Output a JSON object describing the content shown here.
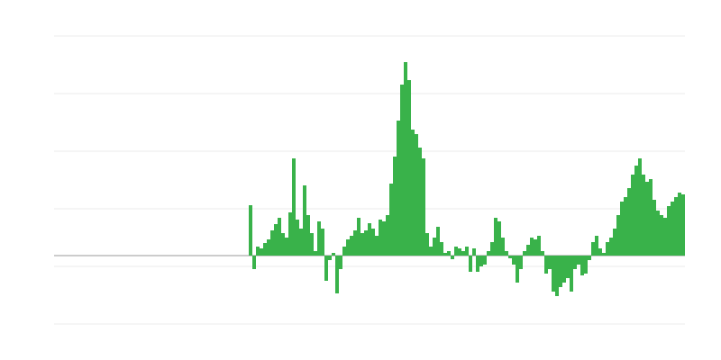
{
  "chart_data": {
    "type": "bar",
    "color": "#39b24a",
    "grid": true,
    "xlim": [
      0,
      175
    ],
    "ylim": [
      -76,
      244
    ],
    "yticks": [
      -76,
      -12,
      52,
      116,
      180,
      244
    ],
    "x": [
      54,
      55,
      56,
      57,
      58,
      59,
      60,
      61,
      62,
      63,
      64,
      65,
      66,
      67,
      68,
      69,
      70,
      71,
      72,
      73,
      74,
      75,
      76,
      77,
      78,
      79,
      80,
      81,
      82,
      83,
      84,
      85,
      86,
      87,
      88,
      89,
      90,
      91,
      92,
      93,
      94,
      95,
      96,
      97,
      98,
      99,
      100,
      101,
      102,
      103,
      104,
      105,
      106,
      107,
      108,
      109,
      110,
      111,
      112,
      113,
      114,
      115,
      116,
      117,
      118,
      119,
      120,
      121,
      122,
      123,
      124,
      125,
      126,
      127,
      128,
      129,
      130,
      131,
      132,
      133,
      134,
      135,
      136,
      137,
      138,
      139,
      140,
      141,
      142,
      143,
      144,
      145,
      146,
      147,
      148,
      149,
      150,
      151,
      152,
      153,
      154,
      155,
      156,
      157,
      158,
      159,
      160,
      161,
      162,
      163,
      164,
      165,
      166,
      167,
      168,
      169,
      170,
      171,
      172,
      173,
      174
    ],
    "values": [
      56,
      -15,
      10,
      8,
      14,
      18,
      28,
      35,
      42,
      25,
      20,
      48,
      108,
      40,
      30,
      78,
      45,
      25,
      5,
      38,
      30,
      -28,
      -5,
      3,
      -42,
      -15,
      10,
      18,
      22,
      28,
      42,
      25,
      28,
      36,
      30,
      22,
      40,
      38,
      45,
      80,
      110,
      150,
      190,
      215,
      195,
      140,
      135,
      120,
      108,
      25,
      10,
      20,
      32,
      15,
      3,
      5,
      -4,
      10,
      8,
      5,
      10,
      -18,
      8,
      -18,
      -12,
      -10,
      5,
      15,
      42,
      38,
      20,
      5,
      -3,
      -10,
      -30,
      -15,
      5,
      12,
      20,
      18,
      22,
      5,
      -20,
      -15,
      -40,
      -45,
      -35,
      -30,
      -25,
      -40,
      -15,
      -10,
      -22,
      -20,
      -5,
      15,
      22,
      8,
      3,
      15,
      20,
      30,
      45,
      60,
      65,
      75,
      90,
      100,
      108,
      90,
      82,
      85,
      62,
      50,
      45,
      42,
      55,
      60,
      65,
      70,
      68
    ]
  }
}
